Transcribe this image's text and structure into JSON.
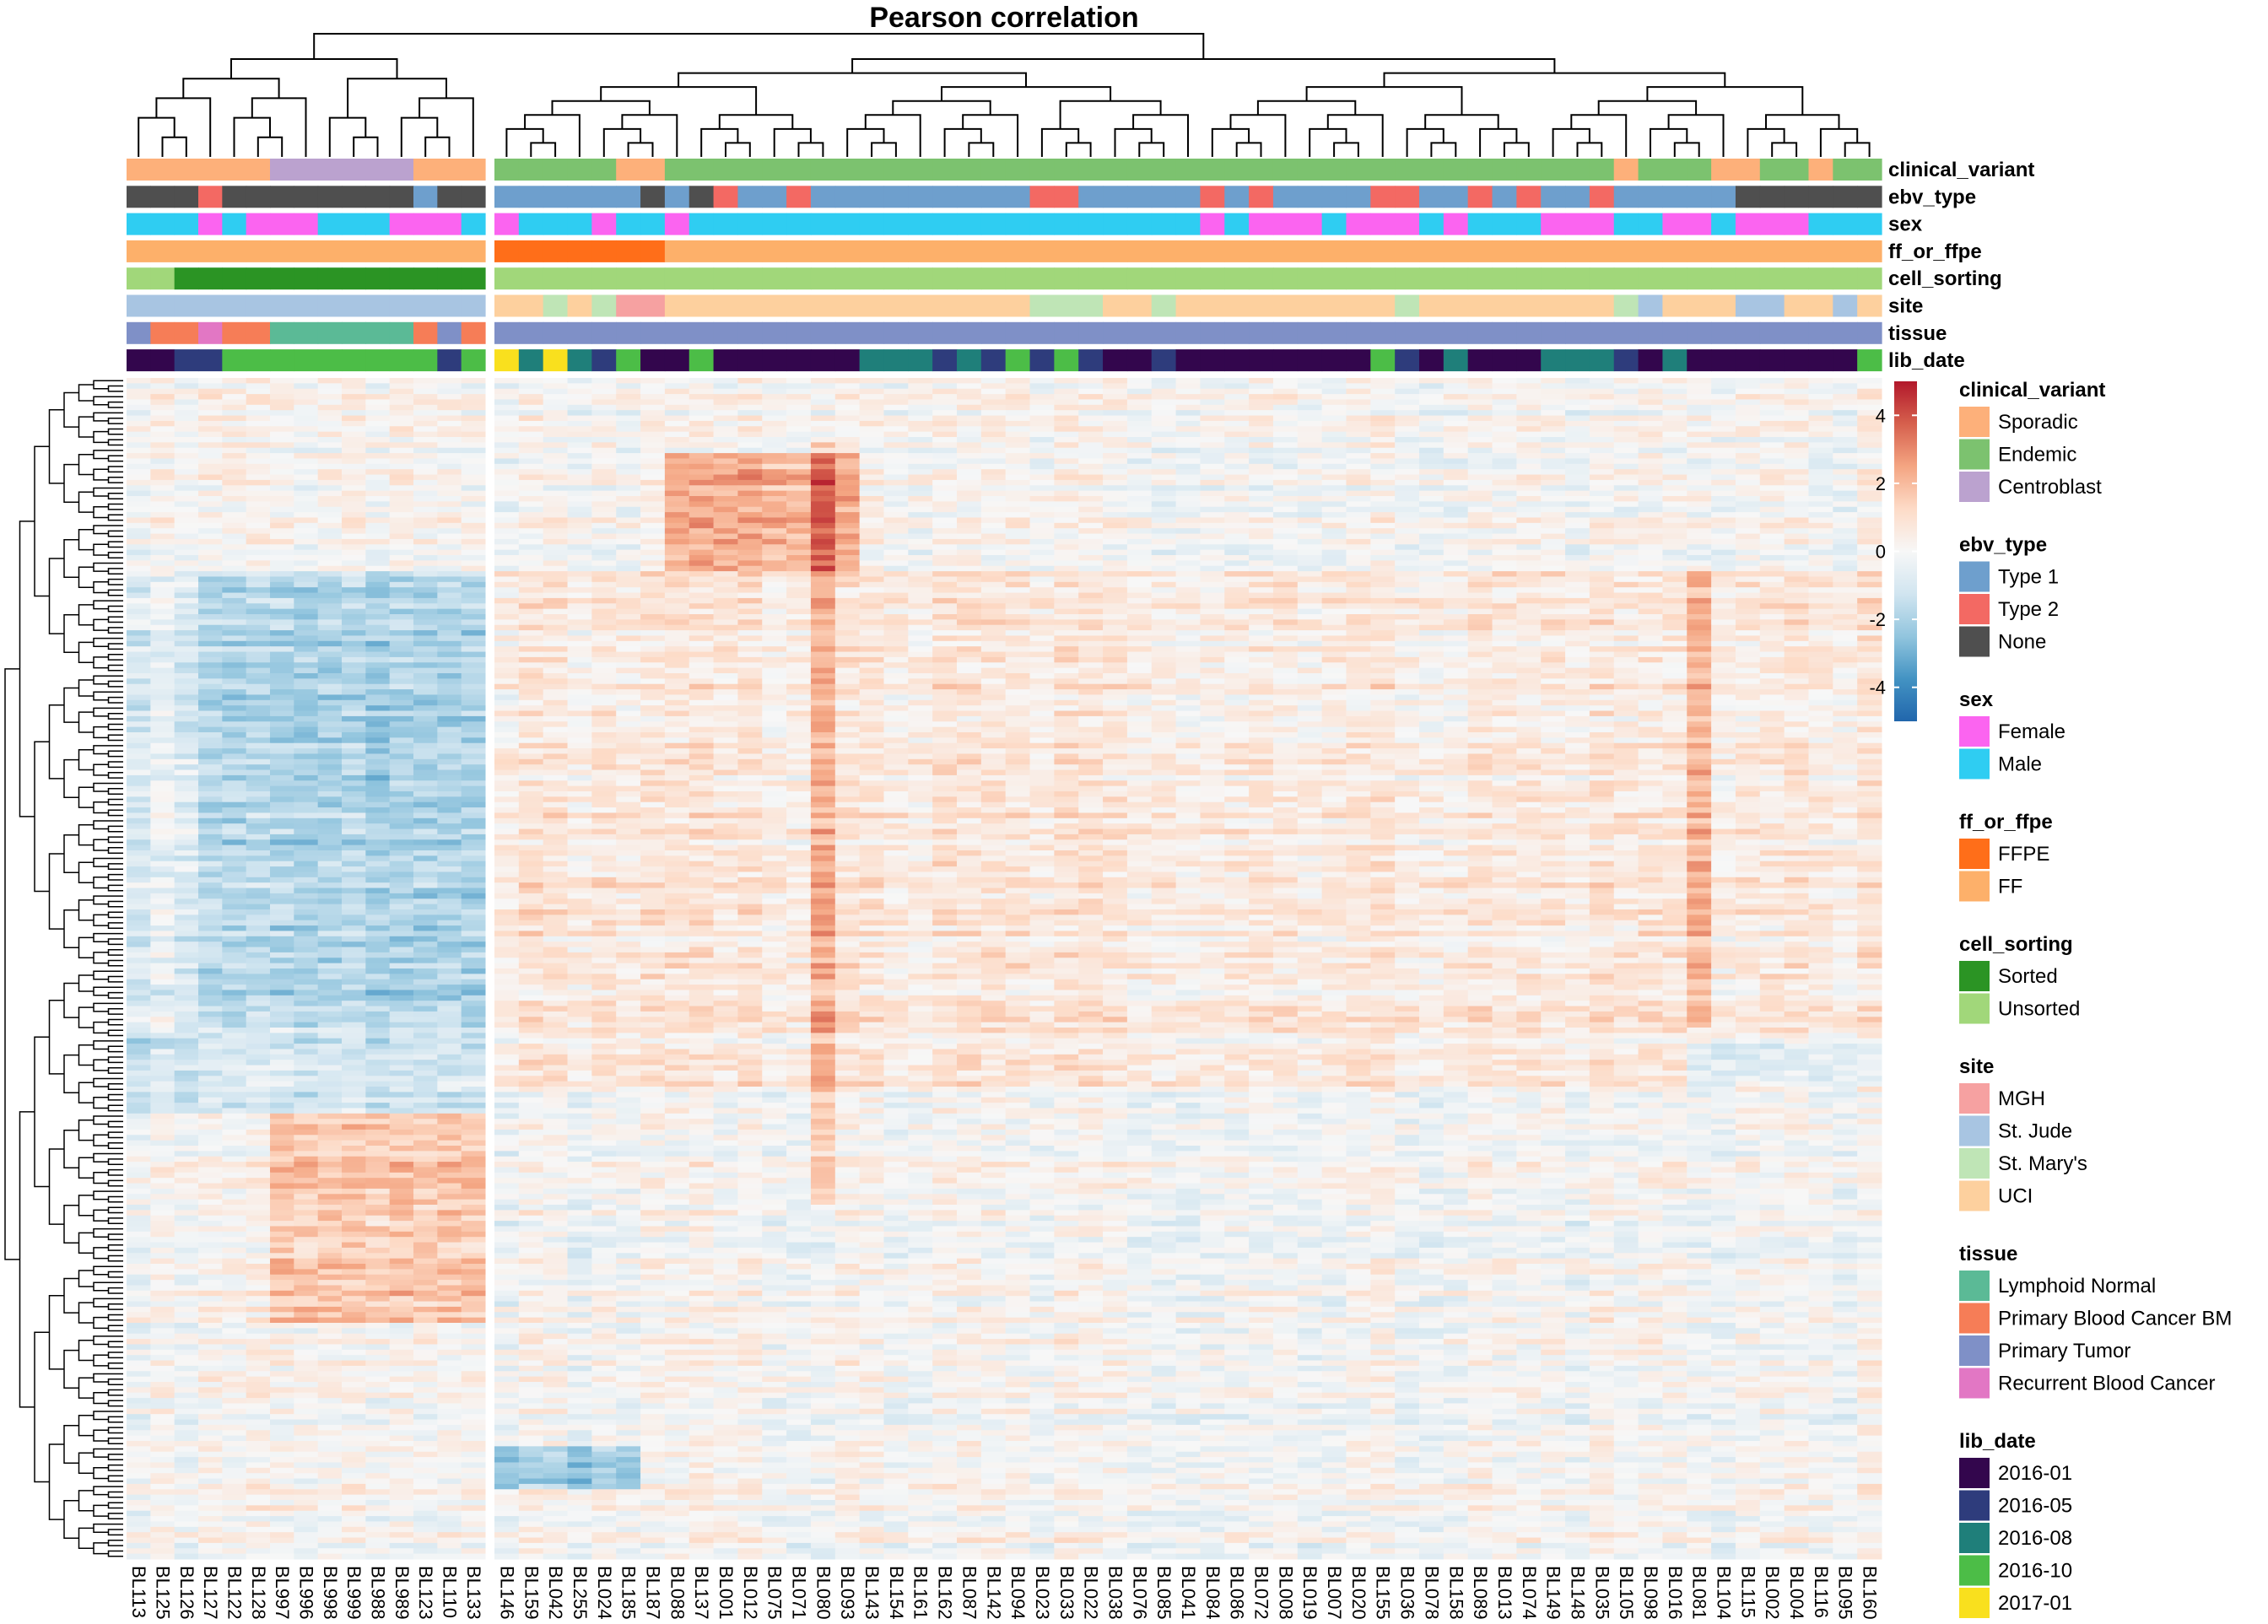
{
  "title": "Pearson correlation",
  "chart_data": {
    "type": "heatmap",
    "title": "Pearson correlation",
    "n_rows_shown": 220,
    "samples": [
      "BL113",
      "BL125",
      "BL126",
      "BL127",
      "BL122",
      "BL128",
      "BL997",
      "BL996",
      "BL998",
      "BL999",
      "BL988",
      "BL989",
      "BL123",
      "BL110",
      "BL133",
      "BL146",
      "BL159",
      "BL042",
      "BL255",
      "BL024",
      "BL185",
      "BL187",
      "BL088",
      "BL137",
      "BL001",
      "BL012",
      "BL075",
      "BL071",
      "BL080",
      "BL093",
      "BL143",
      "BL154",
      "BL161",
      "BL162",
      "BL087",
      "BL142",
      "BL094",
      "BL023",
      "BL033",
      "BL022",
      "BL038",
      "BL076",
      "BL085",
      "BL041",
      "BL084",
      "BL086",
      "BL072",
      "BL008",
      "BL019",
      "BL007",
      "BL020",
      "BL155",
      "BL036",
      "BL078",
      "BL158",
      "BL089",
      "BL013",
      "BL074",
      "BL149",
      "BL148",
      "BL035",
      "BL105",
      "BL098",
      "BL016",
      "BL081",
      "BL104",
      "BL115",
      "BL002",
      "BL004",
      "BL116",
      "BL095",
      "BL160"
    ],
    "group_split_after_index": 14,
    "color_scale": {
      "min": -5,
      "max": 5,
      "ticks": [
        4,
        2,
        0,
        -2,
        -4
      ],
      "stops": [
        "#2166ac",
        "#4393c3",
        "#92c5de",
        "#d1e5f0",
        "#f7f7f7",
        "#fddbc7",
        "#f4a582",
        "#d6604d",
        "#b2182b"
      ]
    },
    "annotation_tracks": [
      {
        "name": "clinical_variant",
        "values": [
          "Sporadic",
          "Sporadic",
          "Sporadic",
          "Sporadic",
          "Sporadic",
          "Sporadic",
          "Centroblast",
          "Centroblast",
          "Centroblast",
          "Centroblast",
          "Centroblast",
          "Centroblast",
          "Sporadic",
          "Sporadic",
          "Sporadic",
          "Endemic",
          "Endemic",
          "Endemic",
          "Endemic",
          "Endemic",
          "Sporadic",
          "Sporadic",
          "Endemic",
          "Endemic",
          "Endemic",
          "Endemic",
          "Endemic",
          "Endemic",
          "Endemic",
          "Endemic",
          "Endemic",
          "Endemic",
          "Endemic",
          "Endemic",
          "Endemic",
          "Endemic",
          "Endemic",
          "Endemic",
          "Endemic",
          "Endemic",
          "Endemic",
          "Endemic",
          "Endemic",
          "Endemic",
          "Endemic",
          "Endemic",
          "Endemic",
          "Endemic",
          "Endemic",
          "Endemic",
          "Endemic",
          "Endemic",
          "Endemic",
          "Endemic",
          "Endemic",
          "Endemic",
          "Endemic",
          "Endemic",
          "Endemic",
          "Endemic",
          "Endemic",
          "Sporadic",
          "Endemic",
          "Endemic",
          "Endemic",
          "Sporadic",
          "Sporadic",
          "Endemic",
          "Endemic",
          "Sporadic",
          "Endemic",
          "Endemic"
        ]
      },
      {
        "name": "ebv_type",
        "values": [
          "None",
          "None",
          "None",
          "Type 2",
          "None",
          "None",
          "None",
          "None",
          "None",
          "None",
          "None",
          "None",
          "Type 1",
          "None",
          "None",
          "Type 1",
          "Type 1",
          "Type 1",
          "Type 1",
          "Type 1",
          "Type 1",
          "None",
          "Type 1",
          "None",
          "Type 2",
          "Type 1",
          "Type 1",
          "Type 2",
          "Type 1",
          "Type 1",
          "Type 1",
          "Type 1",
          "Type 1",
          "Type 1",
          "Type 1",
          "Type 1",
          "Type 1",
          "Type 2",
          "Type 2",
          "Type 1",
          "Type 1",
          "Type 1",
          "Type 1",
          "Type 1",
          "Type 2",
          "Type 1",
          "Type 2",
          "Type 1",
          "Type 1",
          "Type 1",
          "Type 1",
          "Type 2",
          "Type 2",
          "Type 1",
          "Type 1",
          "Type 2",
          "Type 1",
          "Type 2",
          "Type 1",
          "Type 1",
          "Type 2",
          "Type 1",
          "Type 1",
          "Type 1",
          "Type 1",
          "Type 1",
          "None",
          "None",
          "None",
          "None",
          "None",
          "None"
        ]
      },
      {
        "name": "sex",
        "values": [
          "Male",
          "Male",
          "Male",
          "Female",
          "Male",
          "Female",
          "Female",
          "Female",
          "Male",
          "Male",
          "Male",
          "Female",
          "Female",
          "Female",
          "Male",
          "Female",
          "Male",
          "Male",
          "Male",
          "Female",
          "Male",
          "Male",
          "Female",
          "Male",
          "Male",
          "Male",
          "Male",
          "Male",
          "Male",
          "Male",
          "Male",
          "Male",
          "Male",
          "Male",
          "Male",
          "Male",
          "Male",
          "Male",
          "Male",
          "Male",
          "Male",
          "Male",
          "Male",
          "Male",
          "Female",
          "Male",
          "Female",
          "Female",
          "Female",
          "Male",
          "Female",
          "Female",
          "Female",
          "Male",
          "Female",
          "Male",
          "Male",
          "Male",
          "Female",
          "Female",
          "Female",
          "Male",
          "Male",
          "Female",
          "Female",
          "Male",
          "Female",
          "Female",
          "Female",
          "Male",
          "Male",
          "Male"
        ]
      },
      {
        "name": "ff_or_ffpe",
        "values": [
          "FF",
          "FF",
          "FF",
          "FF",
          "FF",
          "FF",
          "FF",
          "FF",
          "FF",
          "FF",
          "FF",
          "FF",
          "FF",
          "FF",
          "FF",
          "FFPE",
          "FFPE",
          "FFPE",
          "FFPE",
          "FFPE",
          "FFPE",
          "FFPE",
          "FF",
          "FF",
          "FF",
          "FF",
          "FF",
          "FF",
          "FF",
          "FF",
          "FF",
          "FF",
          "FF",
          "FF",
          "FF",
          "FF",
          "FF",
          "FF",
          "FF",
          "FF",
          "FF",
          "FF",
          "FF",
          "FF",
          "FF",
          "FF",
          "FF",
          "FF",
          "FF",
          "FF",
          "FF",
          "FF",
          "FF",
          "FF",
          "FF",
          "FF",
          "FF",
          "FF",
          "FF",
          "FF",
          "FF",
          "FF",
          "FF",
          "FF",
          "FF",
          "FF",
          "FF",
          "FF",
          "FF",
          "FF",
          "FF",
          "FF"
        ]
      },
      {
        "name": "cell_sorting",
        "values": [
          "Unsorted",
          "Unsorted",
          "Sorted",
          "Sorted",
          "Sorted",
          "Sorted",
          "Sorted",
          "Sorted",
          "Sorted",
          "Sorted",
          "Sorted",
          "Sorted",
          "Sorted",
          "Sorted",
          "Sorted",
          "Unsorted",
          "Unsorted",
          "Unsorted",
          "Unsorted",
          "Unsorted",
          "Unsorted",
          "Unsorted",
          "Unsorted",
          "Unsorted",
          "Unsorted",
          "Unsorted",
          "Unsorted",
          "Unsorted",
          "Unsorted",
          "Unsorted",
          "Unsorted",
          "Unsorted",
          "Unsorted",
          "Unsorted",
          "Unsorted",
          "Unsorted",
          "Unsorted",
          "Unsorted",
          "Unsorted",
          "Unsorted",
          "Unsorted",
          "Unsorted",
          "Unsorted",
          "Unsorted",
          "Unsorted",
          "Unsorted",
          "Unsorted",
          "Unsorted",
          "Unsorted",
          "Unsorted",
          "Unsorted",
          "Unsorted",
          "Unsorted",
          "Unsorted",
          "Unsorted",
          "Unsorted",
          "Unsorted",
          "Unsorted",
          "Unsorted",
          "Unsorted",
          "Unsorted",
          "Unsorted",
          "Unsorted",
          "Unsorted",
          "Unsorted",
          "Unsorted",
          "Unsorted",
          "Unsorted",
          "Unsorted",
          "Unsorted",
          "Unsorted",
          "Unsorted"
        ]
      },
      {
        "name": "site",
        "values": [
          "St. Jude",
          "St. Jude",
          "St. Jude",
          "St. Jude",
          "St. Jude",
          "St. Jude",
          "St. Jude",
          "St. Jude",
          "St. Jude",
          "St. Jude",
          "St. Jude",
          "St. Jude",
          "St. Jude",
          "St. Jude",
          "St. Jude",
          "UCI",
          "UCI",
          "St. Mary's",
          "UCI",
          "St. Mary's",
          "MGH",
          "MGH",
          "UCI",
          "UCI",
          "UCI",
          "UCI",
          "UCI",
          "UCI",
          "UCI",
          "UCI",
          "UCI",
          "UCI",
          "UCI",
          "UCI",
          "UCI",
          "UCI",
          "UCI",
          "St. Mary's",
          "St. Mary's",
          "St. Mary's",
          "UCI",
          "UCI",
          "St. Mary's",
          "UCI",
          "UCI",
          "UCI",
          "UCI",
          "UCI",
          "UCI",
          "UCI",
          "UCI",
          "UCI",
          "St. Mary's",
          "UCI",
          "UCI",
          "UCI",
          "UCI",
          "UCI",
          "UCI",
          "UCI",
          "UCI",
          "St. Mary's",
          "St. Jude",
          "UCI",
          "UCI",
          "UCI",
          "St. Jude",
          "St. Jude",
          "UCI",
          "UCI",
          "St. Jude",
          "UCI"
        ]
      },
      {
        "name": "tissue",
        "values": [
          "Primary Tumor",
          "Primary Blood Cancer BM",
          "Primary Blood Cancer BM",
          "Recurrent Blood Cancer",
          "Primary Blood Cancer BM",
          "Primary Blood Cancer BM",
          "Lymphoid Normal",
          "Lymphoid Normal",
          "Lymphoid Normal",
          "Lymphoid Normal",
          "Lymphoid Normal",
          "Lymphoid Normal",
          "Primary Blood Cancer BM",
          "Primary Tumor",
          "Primary Blood Cancer BM",
          "Primary Tumor",
          "Primary Tumor",
          "Primary Tumor",
          "Primary Tumor",
          "Primary Tumor",
          "Primary Tumor",
          "Primary Tumor",
          "Primary Tumor",
          "Primary Tumor",
          "Primary Tumor",
          "Primary Tumor",
          "Primary Tumor",
          "Primary Tumor",
          "Primary Tumor",
          "Primary Tumor",
          "Primary Tumor",
          "Primary Tumor",
          "Primary Tumor",
          "Primary Tumor",
          "Primary Tumor",
          "Primary Tumor",
          "Primary Tumor",
          "Primary Tumor",
          "Primary Tumor",
          "Primary Tumor",
          "Primary Tumor",
          "Primary Tumor",
          "Primary Tumor",
          "Primary Tumor",
          "Primary Tumor",
          "Primary Tumor",
          "Primary Tumor",
          "Primary Tumor",
          "Primary Tumor",
          "Primary Tumor",
          "Primary Tumor",
          "Primary Tumor",
          "Primary Tumor",
          "Primary Tumor",
          "Primary Tumor",
          "Primary Tumor",
          "Primary Tumor",
          "Primary Tumor",
          "Primary Tumor",
          "Primary Tumor",
          "Primary Tumor",
          "Primary Tumor",
          "Primary Tumor",
          "Primary Tumor",
          "Primary Tumor",
          "Primary Tumor",
          "Primary Tumor",
          "Primary Tumor",
          "Primary Tumor",
          "Primary Tumor",
          "Primary Tumor",
          "Primary Tumor"
        ]
      },
      {
        "name": "lib_date",
        "values": [
          "2016-01",
          "2016-01",
          "2016-05",
          "2016-05",
          "2016-10",
          "2016-10",
          "2016-10",
          "2016-10",
          "2016-10",
          "2016-10",
          "2016-10",
          "2016-10",
          "2016-10",
          "2016-05",
          "2016-10",
          "2017-01",
          "2016-08",
          "2017-01",
          "2016-08",
          "2016-05",
          "2016-10",
          "2016-01",
          "2016-01",
          "2016-10",
          "2016-01",
          "2016-01",
          "2016-01",
          "2016-01",
          "2016-01",
          "2016-01",
          "2016-08",
          "2016-08",
          "2016-08",
          "2016-05",
          "2016-08",
          "2016-05",
          "2016-10",
          "2016-05",
          "2016-10",
          "2016-05",
          "2016-01",
          "2016-01",
          "2016-05",
          "2016-01",
          "2016-01",
          "2016-01",
          "2016-01",
          "2016-01",
          "2016-01",
          "2016-01",
          "2016-01",
          "2016-10",
          "2016-05",
          "2016-01",
          "2016-08",
          "2016-01",
          "2016-01",
          "2016-01",
          "2016-08",
          "2016-08",
          "2016-08",
          "2016-05",
          "2016-01",
          "2016-08",
          "2016-01",
          "2016-01",
          "2016-01",
          "2016-01",
          "2016-01",
          "2016-01",
          "2016-01",
          "2016-10"
        ]
      }
    ],
    "legends": [
      {
        "title": "clinical_variant",
        "items": [
          {
            "label": "Sporadic",
            "color": "#fdb07a"
          },
          {
            "label": "Endemic",
            "color": "#7cc26f"
          },
          {
            "label": "Centroblast",
            "color": "#bba2cf"
          }
        ]
      },
      {
        "title": "ebv_type",
        "items": [
          {
            "label": "Type 1",
            "color": "#6e9fcd"
          },
          {
            "label": "Type 2",
            "color": "#f36963"
          },
          {
            "label": "None",
            "color": "#4f4f4f"
          }
        ]
      },
      {
        "title": "sex",
        "items": [
          {
            "label": "Female",
            "color": "#fb64f0"
          },
          {
            "label": "Male",
            "color": "#2fcdf2"
          }
        ]
      },
      {
        "title": "ff_or_ffpe",
        "items": [
          {
            "label": "FFPE",
            "color": "#ff6e19"
          },
          {
            "label": "FF",
            "color": "#fdb06a"
          }
        ]
      },
      {
        "title": "cell_sorting",
        "items": [
          {
            "label": "Sorted",
            "color": "#2b9424"
          },
          {
            "label": "Unsorted",
            "color": "#a1d77a"
          }
        ]
      },
      {
        "title": "site",
        "items": [
          {
            "label": "MGH",
            "color": "#f6a1a1"
          },
          {
            "label": "St. Jude",
            "color": "#a8c5e2"
          },
          {
            "label": "St. Mary's",
            "color": "#bfe5b6"
          },
          {
            "label": "UCI",
            "color": "#fdd09e"
          }
        ]
      },
      {
        "title": "tissue",
        "items": [
          {
            "label": "Lymphoid Normal",
            "color": "#5bba96"
          },
          {
            "label": "Primary Blood Cancer BM",
            "color": "#f67d57"
          },
          {
            "label": "Primary Tumor",
            "color": "#7f90c7"
          },
          {
            "label": "Recurrent Blood Cancer",
            "color": "#e277c4"
          }
        ]
      },
      {
        "title": "lib_date",
        "items": [
          {
            "label": "2016-01",
            "color": "#33064d"
          },
          {
            "label": "2016-05",
            "color": "#2e3c7c"
          },
          {
            "label": "2016-08",
            "color": "#1f7f7a"
          },
          {
            "label": "2016-10",
            "color": "#4cbd47"
          },
          {
            "label": "2017-01",
            "color": "#f9e01e"
          }
        ]
      }
    ]
  }
}
